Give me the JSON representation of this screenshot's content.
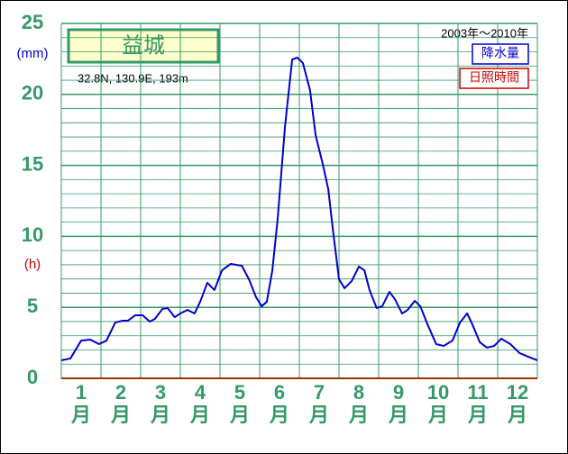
{
  "chart_data": {
    "type": "line",
    "title": "益城",
    "location": "32.8N,  130.9E,  193m",
    "period": "2003年～2010年",
    "y_unit": "(mm)",
    "y2_unit": "(h)",
    "categories": [
      "1",
      "2",
      "3",
      "4",
      "5",
      "6",
      "7",
      "8",
      "9",
      "10",
      "11",
      "12"
    ],
    "category_unit": "月",
    "legend": [
      {
        "name": "降水量",
        "color": "#0000cc"
      },
      {
        "name": "日照時間",
        "color": "#cc0000"
      }
    ],
    "xlim": [
      0,
      12
    ],
    "ylim": [
      0,
      25
    ],
    "yticks": [
      0,
      5,
      10,
      15,
      20,
      25
    ],
    "minor_grid_step": 1,
    "grid": true,
    "series": [
      {
        "name": "降水量",
        "color": "#0000cc",
        "x": [
          0,
          0.23,
          0.5,
          0.73,
          0.95,
          1.14,
          1.36,
          1.55,
          1.68,
          1.86,
          2.05,
          2.23,
          2.36,
          2.55,
          2.68,
          2.86,
          3.0,
          3.18,
          3.36,
          3.5,
          3.68,
          3.86,
          4.05,
          4.27,
          4.55,
          4.73,
          4.91,
          5.05,
          5.18,
          5.32,
          5.45,
          5.64,
          5.82,
          5.95,
          6.09,
          6.27,
          6.41,
          6.59,
          6.73,
          6.86,
          7.0,
          7.14,
          7.32,
          7.5,
          7.64,
          7.77,
          7.95,
          8.09,
          8.27,
          8.41,
          8.59,
          8.73,
          8.91,
          9.05,
          9.23,
          9.45,
          9.64,
          9.86,
          10.05,
          10.23,
          10.36,
          10.55,
          10.73,
          10.91,
          11.09,
          11.32,
          11.55,
          11.77,
          12.0
        ],
        "values": [
          1.27,
          1.4,
          2.66,
          2.73,
          2.41,
          2.66,
          3.93,
          4.06,
          4.06,
          4.44,
          4.44,
          4.0,
          4.19,
          4.89,
          4.95,
          4.31,
          4.57,
          4.82,
          4.57,
          5.39,
          6.73,
          6.22,
          7.61,
          8.06,
          7.93,
          6.98,
          5.71,
          5.08,
          5.39,
          7.61,
          11.1,
          17.77,
          22.46,
          22.59,
          22.21,
          20.3,
          17.13,
          15.1,
          13.32,
          10.15,
          6.98,
          6.35,
          6.85,
          7.87,
          7.61,
          6.22,
          4.95,
          5.08,
          6.09,
          5.58,
          4.57,
          4.82,
          5.46,
          5.08,
          3.81,
          2.41,
          2.28,
          2.66,
          3.93,
          4.57,
          3.81,
          2.54,
          2.16,
          2.28,
          2.79,
          2.41,
          1.78,
          1.52,
          1.27
        ]
      }
    ]
  }
}
